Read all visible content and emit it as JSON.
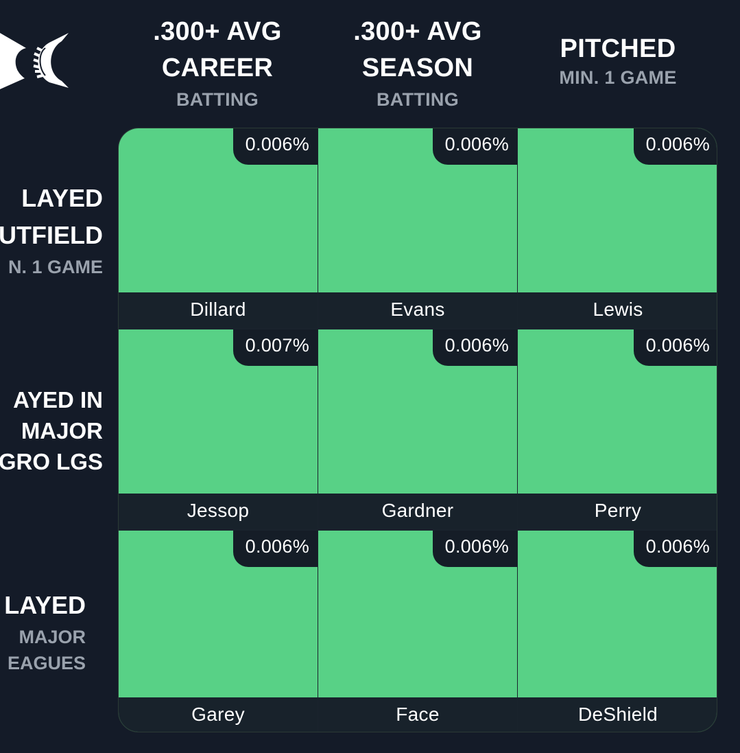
{
  "columns": [
    {
      "lines": [
        ".300+ AVG",
        "CAREER"
      ],
      "sub": "BATTING"
    },
    {
      "lines": [
        ".300+ AVG",
        "SEASON"
      ],
      "sub": "BATTING"
    },
    {
      "lines": [
        "PITCHED"
      ],
      "sub": "MIN. 1 GAME"
    }
  ],
  "rows": [
    {
      "lines": [
        "LAYED",
        "UTFIELD"
      ],
      "sub": [
        "N. 1 GAME"
      ]
    },
    {
      "lines": [
        "AYED IN",
        "MAJOR",
        "GRO LGS"
      ],
      "sub": []
    },
    {
      "lines": [
        "LAYED"
      ],
      "sub": [
        "MAJOR",
        "EAGUES"
      ]
    }
  ],
  "cells": [
    [
      {
        "percent": "0.006%",
        "player": "Dillard"
      },
      {
        "percent": "0.006%",
        "player": "Evans"
      },
      {
        "percent": "0.006%",
        "player": "Lewis"
      }
    ],
    [
      {
        "percent": "0.007%",
        "player": "Jessop"
      },
      {
        "percent": "0.006%",
        "player": "Gardner"
      },
      {
        "percent": "0.006%",
        "player": "Perry"
      }
    ],
    [
      {
        "percent": "0.006%",
        "player": "Garey"
      },
      {
        "percent": "0.006%",
        "player": "Face"
      },
      {
        "percent": "0.006%",
        "player": "DeShield"
      }
    ]
  ],
  "colors": {
    "background": "#141b28",
    "cell_correct": "#58d186",
    "badge": "#151d27",
    "name_bar": "#18222b",
    "subtitle": "#9aa2ad"
  },
  "icons": {
    "logo": "laurel-logo-icon"
  }
}
